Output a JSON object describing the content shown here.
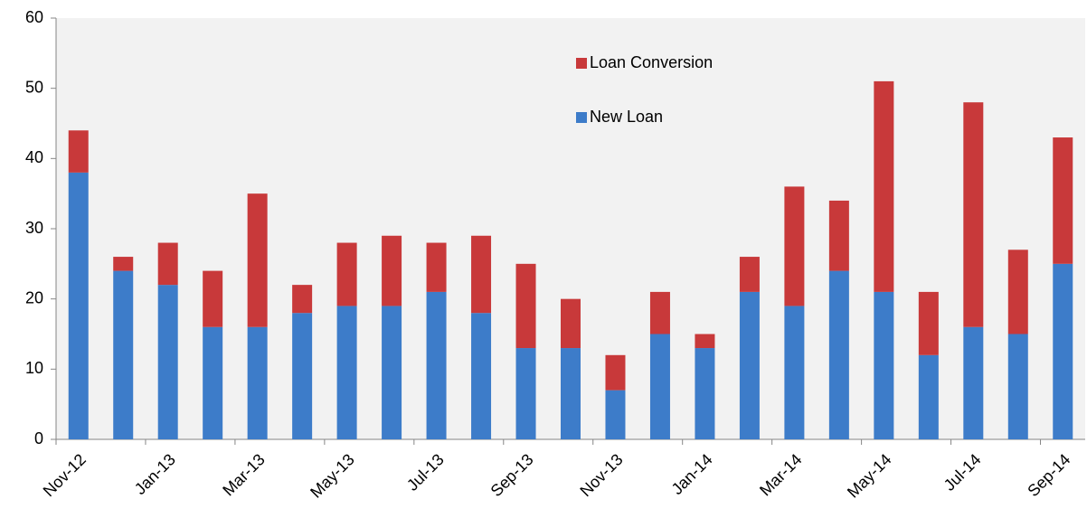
{
  "chart_data": {
    "type": "bar",
    "stacked": true,
    "categories": [
      "Nov-12",
      null,
      "Jan-13",
      null,
      "Mar-13",
      null,
      "May-13",
      null,
      "Jul-13",
      null,
      "Sep-13",
      null,
      "Nov-13",
      null,
      "Jan-14",
      null,
      "Mar-14",
      null,
      "May-14",
      null,
      "Jul-14",
      null,
      "Sep-14"
    ],
    "series": [
      {
        "name": "New Loan",
        "color": "#3d7cc9",
        "values": [
          38,
          24,
          22,
          16,
          16,
          18,
          19,
          19,
          21,
          18,
          13,
          13,
          7,
          15,
          13,
          21,
          19,
          24,
          21,
          12,
          16,
          15,
          25
        ]
      },
      {
        "name": "Loan Conversion",
        "color": "#c8393a",
        "values": [
          6,
          2,
          6,
          8,
          19,
          4,
          9,
          10,
          7,
          11,
          12,
          7,
          5,
          6,
          2,
          5,
          17,
          10,
          30,
          9,
          32,
          12,
          18
        ]
      }
    ],
    "ylim": [
      0,
      60
    ],
    "yticks": [
      0,
      10,
      20,
      30,
      40,
      50,
      60
    ],
    "grid": false
  }
}
